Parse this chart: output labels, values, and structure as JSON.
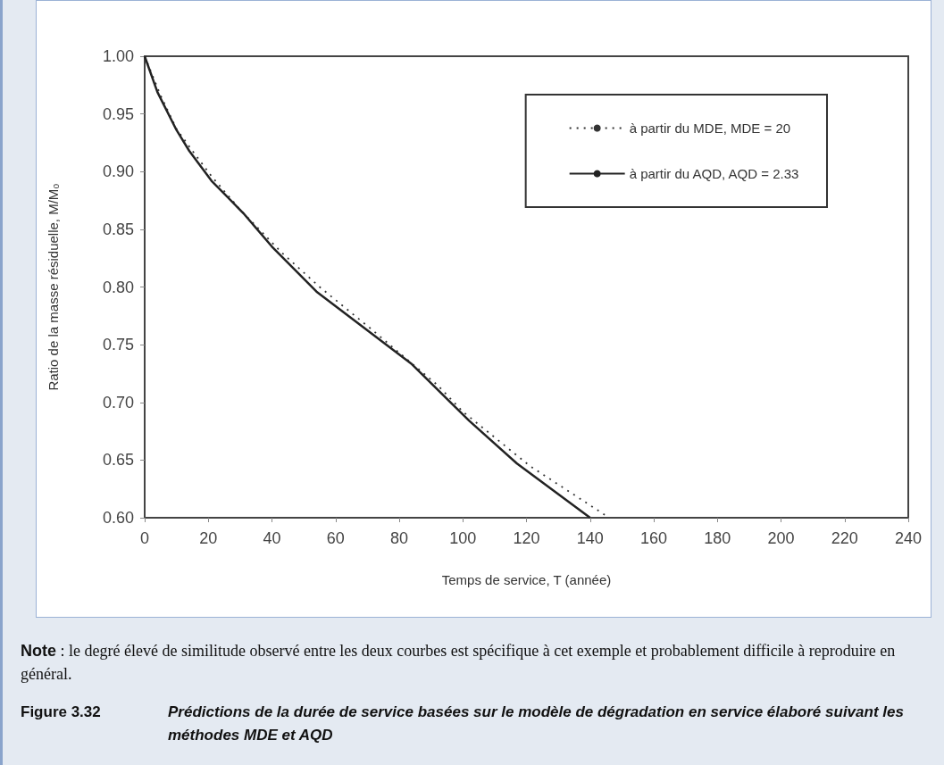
{
  "chart_data": {
    "type": "line",
    "xlabel": "Temps de service, T (année)",
    "ylabel": "Ratio de la masse résiduelle, M/M₀",
    "xlim": [
      0,
      240
    ],
    "xticks": [
      0,
      20,
      40,
      60,
      80,
      100,
      120,
      140,
      160,
      180,
      200,
      220,
      240
    ],
    "ylim": [
      0.6,
      1.0
    ],
    "yticks": [
      {
        "value": 0.6,
        "label": "0.60"
      },
      {
        "value": 0.65,
        "label": "0.65"
      },
      {
        "value": 0.7,
        "label": "0.70"
      },
      {
        "value": 0.75,
        "label": "0.75"
      },
      {
        "value": 0.8,
        "label": "0.80"
      },
      {
        "value": 0.85,
        "label": "0.85"
      },
      {
        "value": 0.9,
        "label": "0.90"
      },
      {
        "value": 0.95,
        "label": "0.95"
      },
      {
        "value": 1.0,
        "label": "1.00"
      }
    ],
    "grid": false,
    "legend": "top right",
    "marker": "none",
    "series": [
      {
        "name": "à partir du MDE, MDE = 20",
        "color": "#333333",
        "line_style": "dotted",
        "x": [
          0,
          5,
          10,
          15,
          21,
          30,
          43,
          55,
          71,
          92,
          100,
          121,
          146
        ],
        "values": [
          1.0,
          0.966,
          0.937,
          0.918,
          0.896,
          0.867,
          0.83,
          0.8,
          0.764,
          0.715,
          0.692,
          0.645,
          0.6
        ]
      },
      {
        "name": "à partir du AQD, AQD = 2.33",
        "color": "#222222",
        "line_style": "solid",
        "x": [
          0,
          4,
          10,
          14,
          21,
          31,
          40,
          54,
          84,
          102,
          117,
          140
        ],
        "values": [
          1.0,
          0.969,
          0.936,
          0.918,
          0.892,
          0.864,
          0.835,
          0.796,
          0.733,
          0.684,
          0.647,
          0.6
        ]
      }
    ],
    "annotations": [
      "Note : le degré élevé de similitude observé entre les deux courbes est spécifique à cet exemple et probablement difficile à reproduire en général.",
      "Figure 3.32 Prédictions de la durée de service basées sur le modèle de dégradation en service élaboré suivant les méthodes MDE et AQD"
    ]
  }
}
